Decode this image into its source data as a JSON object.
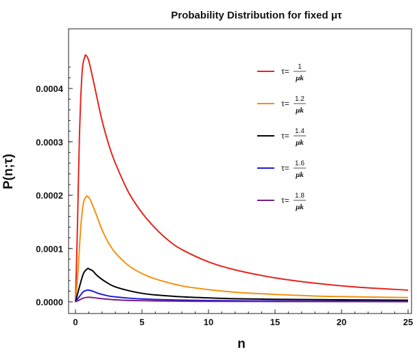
{
  "chart_data": {
    "type": "line",
    "title": "Probability Distribution for fixed μτ",
    "xlabel": "n",
    "ylabel": "P(n;τ)",
    "xlim": [
      0,
      25
    ],
    "ylim": [
      -1e-05,
      0.00047
    ],
    "xticks": [
      0,
      5,
      10,
      15,
      20,
      25
    ],
    "xtick_labels": [
      "0",
      "5",
      "10",
      "15",
      "20",
      "25"
    ],
    "yticks": [
      0,
      0.0001,
      0.0002,
      0.0003,
      0.0004
    ],
    "ytick_labels": [
      "0.0000",
      "0.0001",
      "0.0002",
      "0.0003",
      "0.0004"
    ],
    "legend_position": "top-right",
    "series": [
      {
        "name": "τ=1/μk",
        "legend": {
          "prefix": "τ=",
          "numerator": "1",
          "denominator": "μk"
        },
        "color": "#e8221b",
        "x": [
          0,
          0.15,
          0.3,
          0.5,
          0.7,
          0.8,
          1.0,
          1.3,
          1.6,
          2.0,
          2.5,
          3.0,
          4.0,
          5.0,
          6.0,
          7.0,
          8.0,
          10.0,
          12.0,
          15.0,
          18.0,
          21.0,
          25.0
        ],
        "values": [
          0,
          0.00014,
          0.00031,
          0.00043,
          0.000459,
          0.000462,
          0.000452,
          0.00042,
          0.000385,
          0.00034,
          0.000295,
          0.00026,
          0.000205,
          0.000167,
          0.000138,
          0.000115,
          9.8e-05,
          7.5e-05,
          6e-05,
          4.5e-05,
          3.5e-05,
          2.8e-05,
          2.2e-05
        ]
      },
      {
        "name": "τ=1.2/μk",
        "legend": {
          "prefix": "τ=",
          "numerator": "1.2",
          "denominator": "μk"
        },
        "color": "#f4900c",
        "x": [
          0,
          0.2,
          0.4,
          0.6,
          0.8,
          0.9,
          1.1,
          1.5,
          2.0,
          2.5,
          3.0,
          4.0,
          5.0,
          6.0,
          8.0,
          10.0,
          12.0,
          15.0,
          18.0,
          21.0,
          25.0
        ],
        "values": [
          0,
          6e-05,
          0.00014,
          0.000185,
          0.000197,
          0.000198,
          0.000192,
          0.000168,
          0.000135,
          0.00011,
          9.2e-05,
          6.8e-05,
          5.3e-05,
          4.3e-05,
          3e-05,
          2.3e-05,
          1.8e-05,
          1.4e-05,
          1.1e-05,
          9.5e-06,
          8e-06
        ]
      },
      {
        "name": "τ=1.4/μk",
        "legend": {
          "prefix": "τ=",
          "numerator": "1.4",
          "denominator": "μk"
        },
        "color": "#000000",
        "x": [
          0,
          0.3,
          0.6,
          0.9,
          1.0,
          1.3,
          1.6,
          2.0,
          2.5,
          3.0,
          4.0,
          5.0,
          6.0,
          8.0,
          10.0,
          12.0,
          15.0,
          20.0,
          25.0
        ],
        "values": [
          0,
          2.8e-05,
          5.3e-05,
          6.2e-05,
          6.2e-05,
          5.8e-05,
          5e-05,
          4.2e-05,
          3.4e-05,
          2.8e-05,
          2.1e-05,
          1.6e-05,
          1.3e-05,
          9.5e-06,
          7.5e-06,
          6e-06,
          4.8e-06,
          3.8e-06,
          3e-06
        ]
      },
      {
        "name": "τ=1.6/μk",
        "legend": {
          "prefix": "τ=",
          "numerator": "1.6",
          "denominator": "μk"
        },
        "color": "#1a1adb",
        "x": [
          0,
          0.3,
          0.6,
          0.9,
          1.0,
          1.3,
          1.7,
          2.0,
          2.5,
          3.0,
          4.0,
          5.0,
          6.0,
          8.0,
          10.0,
          15.0,
          20.0,
          25.0
        ],
        "values": [
          0,
          1e-05,
          1.9e-05,
          2.2e-05,
          2.2e-05,
          2e-05,
          1.6e-05,
          1.4e-05,
          1.1e-05,
          9.3e-06,
          7e-06,
          5.5e-06,
          4.5e-06,
          3.3e-06,
          2.6e-06,
          1.7e-06,
          1.3e-06,
          1e-06
        ]
      },
      {
        "name": "τ=1.8/μk",
        "legend": {
          "prefix": "τ=",
          "numerator": "1.8",
          "denominator": "μk"
        },
        "color": "#7a1a86",
        "x": [
          0,
          0.3,
          0.6,
          0.9,
          1.1,
          1.4,
          1.8,
          2.2,
          3.0,
          4.0,
          5.0,
          6.0,
          8.0,
          10.0,
          15.0,
          20.0,
          25.0
        ],
        "values": [
          0,
          3.5e-06,
          7.2e-06,
          8.5e-06,
          8.5e-06,
          7.8e-06,
          6.5e-06,
          5.5e-06,
          3.8e-06,
          2.8e-06,
          2.2e-06,
          1.8e-06,
          1.3e-06,
          1e-06,
          7e-07,
          5e-07,
          4e-07
        ]
      }
    ]
  }
}
